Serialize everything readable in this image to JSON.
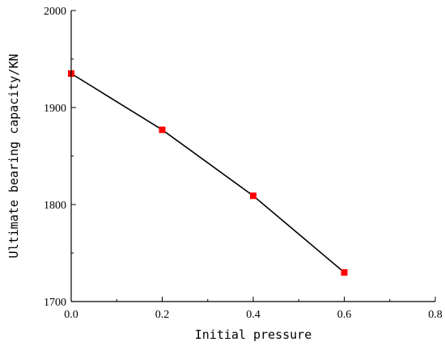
{
  "chart_data": {
    "type": "line",
    "xlabel": "Initial pressure",
    "ylabel": "Ultimate bearing capacity/KN",
    "xlim": [
      0.0,
      0.8
    ],
    "ylim": [
      1700,
      2000
    ],
    "x_ticks": [
      "0.0",
      "0.2",
      "0.4",
      "0.6",
      "0.8"
    ],
    "y_ticks": [
      "1700",
      "1800",
      "1900",
      "2000"
    ],
    "grid": false,
    "series": [
      {
        "x": [
          0.0,
          0.2,
          0.4,
          0.6
        ],
        "values": [
          1935,
          1877,
          1809,
          1730
        ],
        "line_color": "#000000",
        "marker_color": "#ff0000",
        "marker": "square"
      }
    ]
  }
}
